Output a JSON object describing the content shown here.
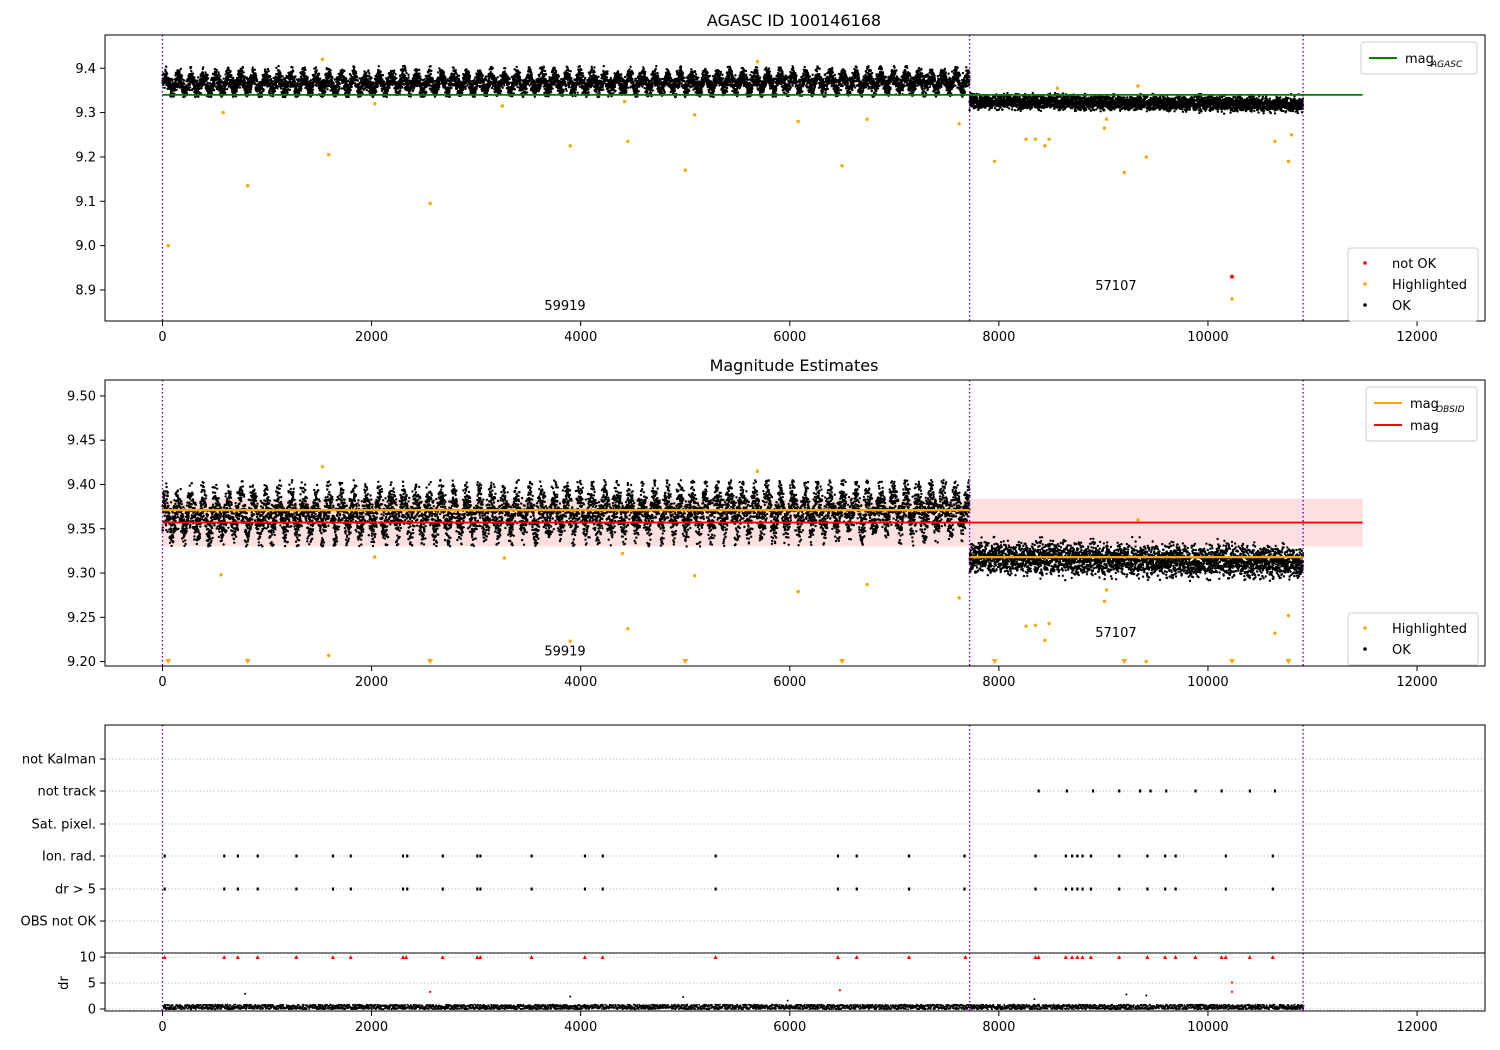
{
  "chart_data": [
    {
      "type": "scatter",
      "title": "AGASC ID 100146168",
      "xlim": [
        -550,
        12650
      ],
      "ylim": [
        8.83,
        9.475
      ],
      "xticks": [
        "0",
        "2000",
        "4000",
        "6000",
        "8000",
        "10000",
        "12000"
      ],
      "yticks": [
        "8.9",
        "9.0",
        "9.1",
        "9.2",
        "9.3",
        "9.4"
      ],
      "grid": false,
      "obs_boundaries": [
        0,
        7720,
        10910
      ],
      "obsid_labels": [
        {
          "text": "59919",
          "x": 3850,
          "y": 8.855
        },
        {
          "text": "57107",
          "x": 9120,
          "y": 8.9
        }
      ],
      "ok_bands": [
        {
          "x0": 0,
          "x1": 7720,
          "low": 9.335,
          "high": 9.405,
          "cycle": 120,
          "trend": [
            9.365,
            9.37
          ]
        },
        {
          "x0": 7720,
          "x1": 10910,
          "low": 9.295,
          "high": 9.345,
          "cycle": 0,
          "trend": [
            9.325,
            9.318
          ]
        }
      ],
      "highlighted": {
        "x": [
          55,
          580,
          815,
          1530,
          1590,
          2030,
          2560,
          3250,
          3900,
          4420,
          4450,
          5000,
          5090,
          5690,
          6080,
          6500,
          6740,
          7620,
          7960,
          8260,
          8350,
          8440,
          8480,
          8560,
          9010,
          9030,
          9200,
          9330,
          9410,
          10230,
          10640,
          10770,
          10800
        ],
        "y": [
          9.0,
          9.3,
          9.135,
          9.42,
          9.205,
          9.32,
          9.095,
          9.315,
          9.225,
          9.325,
          9.235,
          9.17,
          9.295,
          9.415,
          9.28,
          9.18,
          9.285,
          9.275,
          9.19,
          9.24,
          9.24,
          9.225,
          9.24,
          9.355,
          9.265,
          9.285,
          9.165,
          9.36,
          9.2,
          8.88,
          9.235,
          9.19,
          9.25
        ]
      },
      "not_ok": {
        "x": [
          10230
        ],
        "y": [
          8.93
        ]
      },
      "mag_agasc_line": {
        "value": 9.34,
        "x0": 0,
        "x1": 11480,
        "color": "#008000"
      },
      "legend_lines": [
        {
          "label": "mag",
          "sub": "AGASC",
          "color": "#008000"
        }
      ],
      "legend_points": [
        {
          "label": "not OK",
          "color": "#ff0000"
        },
        {
          "label": "Highlighted",
          "color": "#ffa500"
        },
        {
          "label": "OK",
          "color": "#000000"
        }
      ]
    },
    {
      "type": "scatter",
      "title": "Magnitude Estimates",
      "xlim": [
        -550,
        12650
      ],
      "ylim": [
        9.195,
        9.518
      ],
      "xticks": [
        "0",
        "2000",
        "4000",
        "6000",
        "8000",
        "10000",
        "12000"
      ],
      "yticks": [
        "9.20",
        "9.25",
        "9.30",
        "9.35",
        "9.40",
        "9.45",
        "9.50"
      ],
      "grid": false,
      "obs_boundaries": [
        0,
        7720,
        10910
      ],
      "obsid_labels": [
        {
          "text": "59919",
          "x": 3850,
          "y": 9.207
        },
        {
          "text": "57107",
          "x": 9120,
          "y": 9.228
        }
      ],
      "ok_bands": [
        {
          "x0": 0,
          "x1": 7720,
          "low": 9.33,
          "high": 9.405,
          "cycle": 120,
          "trend": [
            9.365,
            9.372
          ]
        },
        {
          "x0": 7720,
          "x1": 10910,
          "low": 9.29,
          "high": 9.345,
          "cycle": 0,
          "trend": [
            9.318,
            9.312
          ]
        }
      ],
      "highlighted": {
        "x": [
          560,
          1530,
          1590,
          2030,
          3270,
          3900,
          4400,
          4450,
          5090,
          5690,
          6080,
          6740,
          7620,
          8260,
          8350,
          8440,
          8480,
          9010,
          9030,
          9330,
          9410,
          10640,
          10770
        ],
        "y": [
          9.298,
          9.42,
          9.207,
          9.318,
          9.317,
          9.223,
          9.322,
          9.237,
          9.297,
          9.415,
          9.279,
          9.287,
          9.272,
          9.24,
          9.241,
          9.224,
          9.243,
          9.268,
          9.281,
          9.36,
          9.2,
          9.232,
          9.252
        ]
      },
      "below_markers": {
        "x": [
          55,
          815,
          2560,
          5000,
          6500,
          7960,
          9200,
          10230,
          10770
        ]
      },
      "mag_obsid_segments": [
        {
          "x0": 0,
          "x1": 7720,
          "value": 9.371
        },
        {
          "x0": 7720,
          "x1": 10910,
          "value": 9.318
        }
      ],
      "mag_line": {
        "value": 9.357,
        "x0": 0,
        "x1": 11480,
        "band": [
          9.33,
          9.384
        ],
        "color": "#ff0000"
      },
      "legend_lines": [
        {
          "label": "mag",
          "sub": "OBSID",
          "color": "#ffa500"
        },
        {
          "label": "mag",
          "sub": "",
          "color": "#ff0000"
        }
      ],
      "legend_points": [
        {
          "label": "Highlighted",
          "color": "#ffa500"
        },
        {
          "label": "OK",
          "color": "#000000"
        }
      ]
    },
    {
      "type": "scatter",
      "title": "",
      "xlim": [
        -550,
        12650
      ],
      "xticks": [
        "0",
        "2000",
        "4000",
        "6000",
        "8000",
        "10000",
        "12000"
      ],
      "flag_rows": [
        "not Kalman",
        "not track",
        "Sat. pixel.",
        "Ion. rad.",
        "dr > 5",
        "OBS not OK"
      ],
      "flags": {
        "not_track": [
          8380,
          8650,
          8900,
          9150,
          9350,
          9450,
          9600,
          9880,
          10130,
          10400,
          10640
        ],
        "ion_rad": [
          20,
          590,
          720,
          910,
          1280,
          1630,
          1800,
          2300,
          2340,
          2680,
          3010,
          3040,
          3530,
          4040,
          4210,
          5290,
          6460,
          6640,
          7140,
          7670,
          8350,
          8640,
          8700,
          8750,
          8800,
          8880,
          9150,
          9420,
          9590,
          9690,
          10170,
          10620
        ],
        "dr_gt_5": [
          20,
          590,
          720,
          910,
          1280,
          1630,
          1800,
          2300,
          2340,
          2680,
          3010,
          3040,
          3530,
          4040,
          4210,
          5290,
          6460,
          6640,
          7140,
          7670,
          8350,
          8640,
          8700,
          8750,
          8800,
          8880,
          9150,
          9420,
          9590,
          9690,
          10170,
          10620
        ]
      },
      "dr": {
        "ylabel": "dr",
        "ylim": [
          0,
          10.4
        ],
        "yticks": [
          "0",
          "5",
          "10"
        ],
        "clipped_x": [
          20,
          590,
          720,
          910,
          1280,
          1630,
          1800,
          2300,
          2330,
          2680,
          3010,
          3040,
          3530,
          4040,
          4210,
          5290,
          6460,
          6640,
          7140,
          7680,
          8350,
          8380,
          8640,
          8700,
          8750,
          8800,
          8880,
          9150,
          9420,
          9590,
          9690,
          9880,
          10130,
          10170,
          10400,
          10620
        ],
        "outliers": {
          "x": [
            2560,
            6480,
            10230,
            10230
          ],
          "y": [
            3.3,
            3.6,
            3.3,
            5.1
          ]
        },
        "baseline": {
          "x0": 0,
          "x1": 10910,
          "low": 0.1,
          "high": 1.0
        },
        "scatter_ok": {
          "x": [
            790,
            3900,
            4980,
            5980,
            8340,
            9220,
            9410
          ],
          "y": [
            2.9,
            2.4,
            2.3,
            1.6,
            1.9,
            2.8,
            2.6
          ]
        }
      }
    }
  ]
}
